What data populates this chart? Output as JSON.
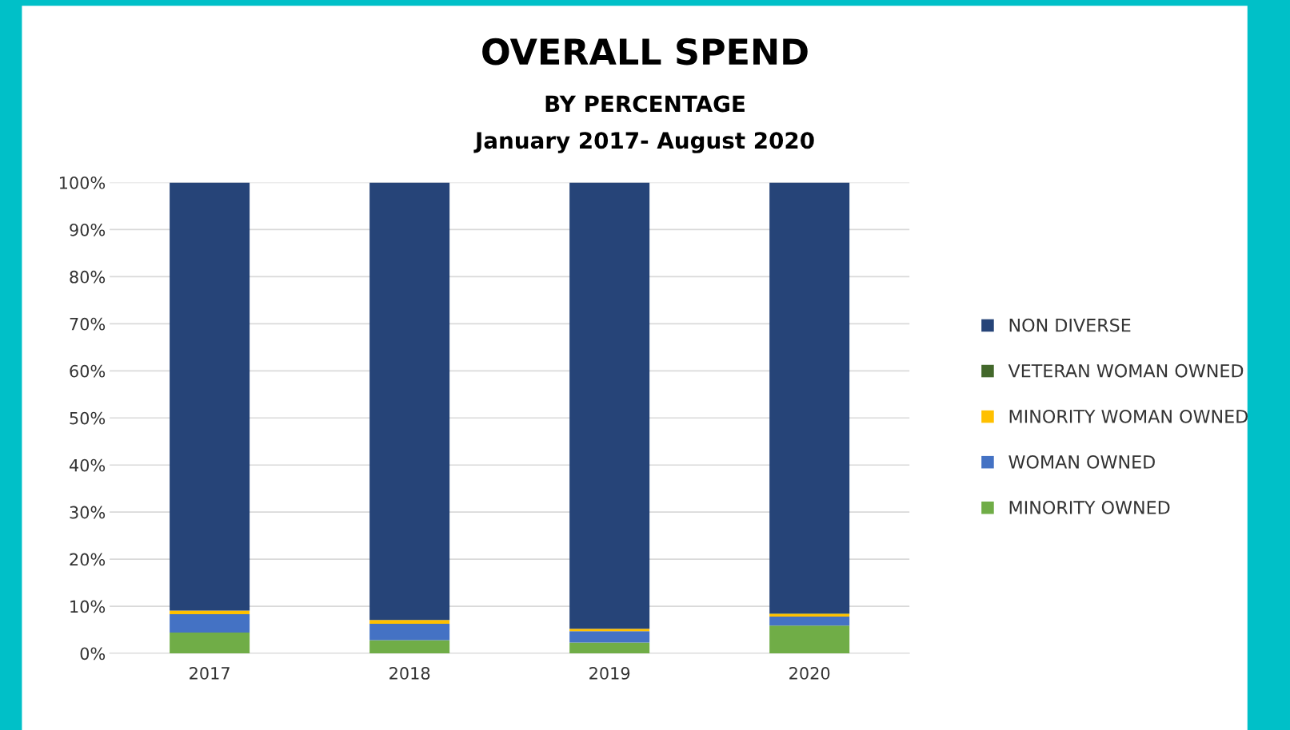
{
  "chart_data": {
    "type": "bar",
    "title": "OVERALL SPEND",
    "subtitle": "BY PERCENTAGE\nJanuary 2017- August 2020",
    "categories": [
      "2017",
      "2018",
      "2019",
      "2020"
    ],
    "stacked": true,
    "series": [
      {
        "name": "MINORITY OWNED",
        "color": "#70ad47",
        "values": [
          4.4,
          2.8,
          2.3,
          5.9
        ]
      },
      {
        "name": "WOMAN OWNED",
        "color": "#4472c4",
        "values": [
          3.9,
          3.5,
          2.4,
          1.9
        ]
      },
      {
        "name": "MINORITY WOMAN OWNED",
        "color": "#ffc000",
        "values": [
          0.8,
          0.8,
          0.5,
          0.6
        ]
      },
      {
        "name": "VETERAN WOMAN OWNED",
        "color": "#43682b",
        "values": [
          0,
          0,
          0,
          0.1
        ]
      },
      {
        "name": "NON DIVERSE",
        "color": "#264478",
        "values": [
          90.9,
          92.9,
          94.8,
          91.5
        ]
      }
    ],
    "ylim": [
      0,
      100
    ],
    "yticks": [
      {
        "value": 0,
        "label": "0%"
      },
      {
        "value": 10,
        "label": "10%"
      },
      {
        "value": 20,
        "label": "20%"
      },
      {
        "value": 30,
        "label": "30%"
      },
      {
        "value": 40,
        "label": "40%"
      },
      {
        "value": 50,
        "label": "50%"
      },
      {
        "value": 60,
        "label": "60%"
      },
      {
        "value": 70,
        "label": "70%"
      },
      {
        "value": 80,
        "label": "80%"
      },
      {
        "value": 90,
        "label": "90%"
      },
      {
        "value": 100,
        "label": "100%"
      }
    ],
    "grid": "y",
    "legend": "right"
  }
}
